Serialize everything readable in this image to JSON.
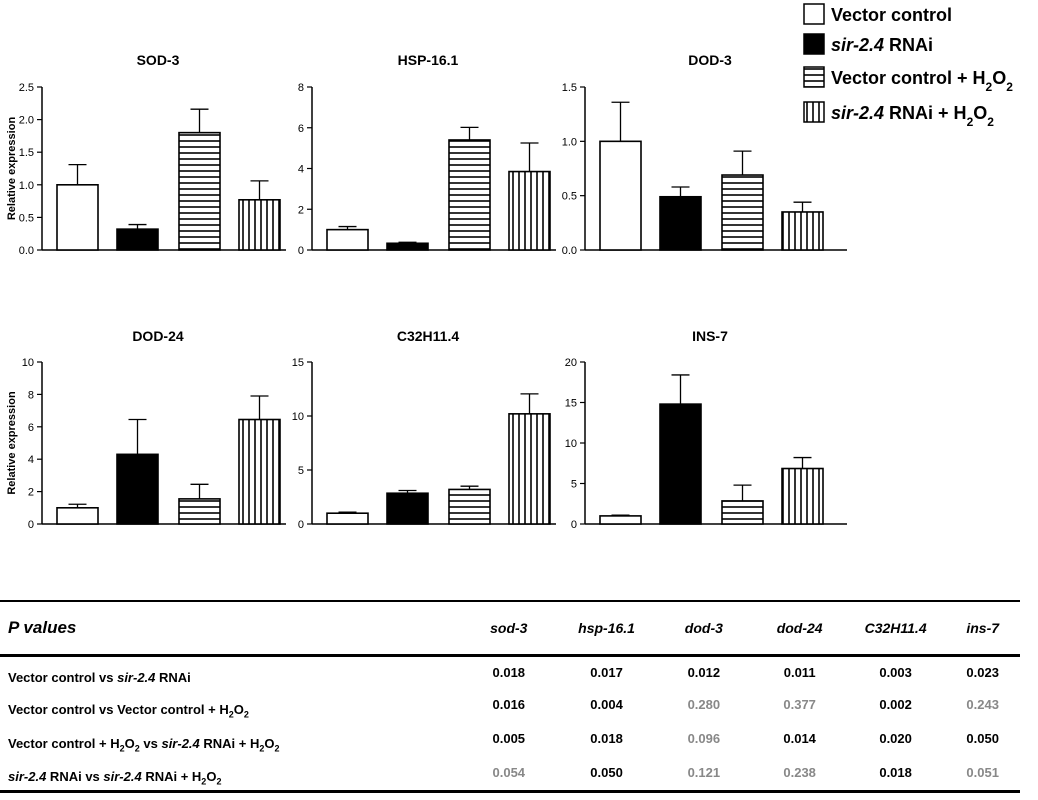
{
  "chart_data": [
    {
      "type": "bar",
      "title": "SOD-3",
      "ylabel": "Relative expression",
      "ylim": [
        0,
        2.5
      ],
      "yticks": [
        "0.0",
        "0.5",
        "1.0",
        "1.5",
        "2.0",
        "2.5"
      ],
      "ytick_values": [
        0,
        0.5,
        1,
        1.5,
        2,
        2.5
      ],
      "categories": [
        "Vector control",
        "sir-2.4 RNAi",
        "Vector control + H2O2",
        "sir-2.4 RNAi + H2O2"
      ],
      "values": [
        1.0,
        0.32,
        1.8,
        0.77
      ],
      "errors": [
        0.31,
        0.07,
        0.36,
        0.29
      ]
    },
    {
      "type": "bar",
      "title": "HSP-16.1",
      "ylabel": "",
      "ylim": [
        0,
        8
      ],
      "yticks": [
        "0",
        "2",
        "4",
        "6",
        "8"
      ],
      "ytick_values": [
        0,
        2,
        4,
        6,
        8
      ],
      "categories": [
        "Vector control",
        "sir-2.4 RNAi",
        "Vector control + H2O2",
        "sir-2.4 RNAi + H2O2"
      ],
      "values": [
        1.0,
        0.33,
        5.4,
        3.85
      ],
      "errors": [
        0.15,
        0.05,
        0.62,
        1.4
      ]
    },
    {
      "type": "bar",
      "title": "DOD-3",
      "ylabel": "",
      "ylim": [
        0,
        1.5
      ],
      "yticks": [
        "0.0",
        "0.5",
        "1.0",
        "1.5"
      ],
      "ytick_values": [
        0,
        0.5,
        1,
        1.5
      ],
      "categories": [
        "Vector control",
        "sir-2.4 RNAi",
        "Vector control + H2O2",
        "sir-2.4 RNAi + H2O2"
      ],
      "values": [
        1.0,
        0.49,
        0.69,
        0.35
      ],
      "errors": [
        0.36,
        0.09,
        0.22,
        0.09
      ]
    },
    {
      "type": "bar",
      "title": "DOD-24",
      "ylabel": "Relative expression",
      "ylim": [
        0,
        10
      ],
      "yticks": [
        "0",
        "2",
        "4",
        "6",
        "8",
        "10"
      ],
      "ytick_values": [
        0,
        2,
        4,
        6,
        8,
        10
      ],
      "categories": [
        "Vector control",
        "sir-2.4 RNAi",
        "Vector control + H2O2",
        "sir-2.4 RNAi + H2O2"
      ],
      "values": [
        1.0,
        4.3,
        1.55,
        6.45
      ],
      "errors": [
        0.22,
        2.15,
        0.9,
        1.45
      ]
    },
    {
      "type": "bar",
      "title": "C32H11.4",
      "ylabel": "",
      "ylim": [
        0,
        15
      ],
      "yticks": [
        "0",
        "5",
        "10",
        "15"
      ],
      "ytick_values": [
        0,
        5,
        10,
        15
      ],
      "categories": [
        "Vector control",
        "sir-2.4 RNAi",
        "Vector control + H2O2",
        "sir-2.4 RNAi + H2O2"
      ],
      "values": [
        1.0,
        2.85,
        3.2,
        10.2
      ],
      "errors": [
        0.1,
        0.25,
        0.3,
        1.85
      ]
    },
    {
      "type": "bar",
      "title": "INS-7",
      "ylabel": "",
      "ylim": [
        0,
        20
      ],
      "yticks": [
        "0",
        "5",
        "10",
        "15",
        "20"
      ],
      "ytick_values": [
        0,
        5,
        10,
        15,
        20
      ],
      "categories": [
        "Vector control",
        "sir-2.4 RNAi",
        "Vector control + H2O2",
        "sir-2.4 RNAi + H2O2"
      ],
      "values": [
        1.0,
        14.8,
        2.85,
        6.85
      ],
      "errors": [
        0.1,
        3.6,
        1.95,
        1.35
      ]
    }
  ],
  "legend": {
    "placement": "top-right",
    "items": [
      {
        "pattern": "white",
        "parts": [
          {
            "t": "Vector control",
            "i": false
          }
        ]
      },
      {
        "pattern": "black",
        "parts": [
          {
            "t": "sir-2.4",
            "i": true
          },
          {
            "t": " RNAi",
            "i": false
          }
        ]
      },
      {
        "pattern": "horizontal",
        "parts": [
          {
            "t": "Vector control + H",
            "i": false
          },
          {
            "t": "2",
            "sub": true
          },
          {
            "t": "O",
            "i": false
          },
          {
            "t": "2",
            "sub": true
          }
        ]
      },
      {
        "pattern": "vertical",
        "parts": [
          {
            "t": "sir-2.4",
            "i": true
          },
          {
            "t": " RNAi + H",
            "i": false
          },
          {
            "t": "2",
            "sub": true
          },
          {
            "t": "O",
            "i": false
          },
          {
            "t": "2",
            "sub": true
          }
        ]
      }
    ]
  },
  "colors": {
    "bar_stroke": "#000000",
    "significant": "#000000",
    "not_significant": "#888888"
  },
  "table": {
    "header_label": "P values",
    "columns": [
      "sod-3",
      "hsp-16.1",
      "dod-3",
      "dod-24",
      "C32H11.4",
      "ins-7"
    ],
    "rows": [
      {
        "label": [
          {
            "t": "Vector control vs "
          },
          {
            "t": "sir-2.4",
            "i": true
          },
          {
            "t": " RNAi"
          }
        ],
        "values": [
          "0.018",
          "0.017",
          "0.012",
          "0.011",
          "0.003",
          "0.023"
        ],
        "significant": [
          true,
          true,
          true,
          true,
          true,
          true
        ]
      },
      {
        "label": [
          {
            "t": "Vector control vs Vector control + H"
          },
          {
            "t": "2",
            "sub": true
          },
          {
            "t": "O"
          },
          {
            "t": "2",
            "sub": true
          }
        ],
        "values": [
          "0.016",
          "0.004",
          "0.280",
          "0.377",
          "0.002",
          "0.243"
        ],
        "significant": [
          true,
          true,
          false,
          false,
          true,
          false
        ]
      },
      {
        "label": [
          {
            "t": "Vector control + H"
          },
          {
            "t": "2",
            "sub": true
          },
          {
            "t": "O"
          },
          {
            "t": "2",
            "sub": true
          },
          {
            "t": " vs "
          },
          {
            "t": "sir-2.4",
            "i": true
          },
          {
            "t": " RNAi + H"
          },
          {
            "t": "2",
            "sub": true
          },
          {
            "t": "O"
          },
          {
            "t": "2",
            "sub": true
          }
        ],
        "values": [
          "0.005",
          "0.018",
          "0.096",
          "0.014",
          "0.020",
          "0.050"
        ],
        "significant": [
          true,
          true,
          false,
          true,
          true,
          true
        ]
      },
      {
        "label": [
          {
            "t": "sir-2.4",
            "i": true
          },
          {
            "t": " RNAi vs "
          },
          {
            "t": "sir-2.4",
            "i": true
          },
          {
            "t": " RNAi + H"
          },
          {
            "t": "2",
            "sub": true
          },
          {
            "t": "O"
          },
          {
            "t": "2",
            "sub": true
          }
        ],
        "values": [
          "0.054",
          "0.050",
          "0.121",
          "0.238",
          "0.018",
          "0.051"
        ],
        "significant": [
          false,
          true,
          false,
          false,
          true,
          false
        ]
      }
    ]
  }
}
